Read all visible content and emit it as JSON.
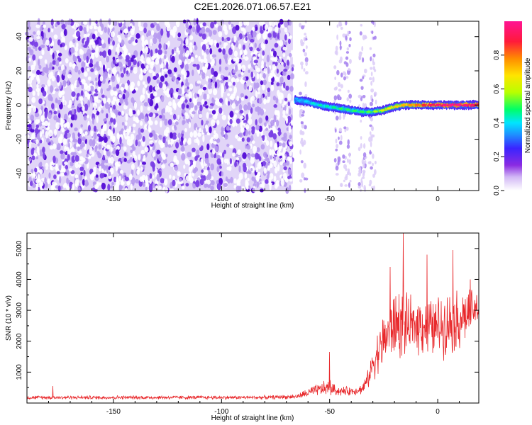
{
  "title": "C2E1.2026.071.06.57.E21",
  "colors": {
    "background": "#ffffff",
    "axis": "#000000",
    "snr_line": "#e8292c",
    "noise_purple": "#6a1ee0",
    "colormap": [
      "#ffffff",
      "#8a2be2",
      "#3a24ff",
      "#1e90ff",
      "#00e5ff",
      "#00ff66",
      "#b8ff00",
      "#ffe400",
      "#ff8c00",
      "#ff1a3a",
      "#ff1493"
    ]
  },
  "chart_data": [
    {
      "id": "spectrogram",
      "type": "heatmap",
      "title": "C2E1.2026.071.06.57.E21",
      "xlabel": "Height of straight line (km)",
      "ylabel": "Frequency (Hz)",
      "xlim": [
        -190,
        19
      ],
      "ylim": [
        -50,
        49
      ],
      "xticks": [
        -150,
        -100,
        -50,
        0
      ],
      "xtick_labels": [
        "-150",
        "-100",
        "-50",
        "0"
      ],
      "yticks": [
        -40,
        -20,
        0,
        20,
        40
      ],
      "ytick_labels": [
        "-40",
        "-20",
        "0",
        "20",
        "40"
      ],
      "colorbar": {
        "label": "Normalized spectral amplitude",
        "range": [
          0,
          1
        ],
        "ticks": [
          0.0,
          0.2,
          0.4,
          0.6,
          0.8
        ],
        "tick_labels": [
          "0.0",
          "0.2",
          "0.4",
          "0.6",
          "0.8"
        ]
      },
      "noise_region": {
        "x_range": [
          -190,
          -67
        ],
        "amplitude": 0.1
      },
      "sparse_noise_columns": [
        -62,
        -46,
        -42,
        -35,
        -30
      ],
      "signal_ridge": {
        "x": [
          -66,
          -60,
          -55,
          -50,
          -45,
          -40,
          -35,
          -30,
          -25,
          -20,
          -15,
          -10,
          -5,
          0,
          5,
          10,
          15,
          19
        ],
        "freq": [
          3,
          2,
          0,
          -1,
          -2,
          -3,
          -4,
          -4,
          -3,
          -1,
          0,
          0,
          0,
          0,
          0,
          0,
          0,
          0
        ],
        "amplitude": [
          0.3,
          0.35,
          0.4,
          0.4,
          0.45,
          0.45,
          0.45,
          0.5,
          0.6,
          0.65,
          0.7,
          0.75,
          0.85,
          0.9,
          0.95,
          0.95,
          0.9,
          0.9
        ]
      }
    },
    {
      "id": "snr",
      "type": "line",
      "xlabel": "Height of straight line (km)",
      "ylabel": "SNR (10 * v/v)",
      "xlim": [
        -190,
        19
      ],
      "ylim": [
        0,
        5500
      ],
      "xticks": [
        -150,
        -100,
        -50,
        0
      ],
      "xtick_labels": [
        "-150",
        "-100",
        "-50",
        "0"
      ],
      "yticks": [
        1000,
        2000,
        3000,
        4000,
        5000
      ],
      "ytick_labels": [
        "1000",
        "2000",
        "3000",
        "4000",
        "5000"
      ],
      "envelope": {
        "x": [
          -190,
          -170,
          -150,
          -120,
          -100,
          -80,
          -65,
          -60,
          -55,
          -50,
          -47,
          -45,
          -40,
          -35,
          -32,
          -30,
          -28,
          -25,
          -22,
          -20,
          -18,
          -15,
          -12,
          -10,
          -8,
          -5,
          -2,
          0,
          3,
          5,
          8,
          10,
          12,
          15,
          17,
          19
        ],
        "mean": [
          180,
          180,
          180,
          180,
          180,
          180,
          210,
          330,
          430,
          500,
          400,
          380,
          380,
          450,
          800,
          1300,
          1600,
          2000,
          2400,
          2500,
          2600,
          2500,
          2450,
          2550,
          2600,
          2500,
          2400,
          2500,
          2550,
          2600,
          2650,
          2700,
          2800,
          2900,
          3000,
          3050
        ],
        "spread": [
          60,
          60,
          60,
          60,
          60,
          60,
          70,
          160,
          200,
          280,
          150,
          150,
          140,
          160,
          300,
          500,
          700,
          900,
          1000,
          1100,
          1200,
          1000,
          900,
          900,
          1000,
          1000,
          900,
          1000,
          1000,
          1000,
          1000,
          1000,
          900,
          800,
          600,
          500
        ]
      },
      "peaks": [
        {
          "x": -178,
          "y": 550
        },
        {
          "x": -50,
          "y": 1650
        },
        {
          "x": -22,
          "y": 4400
        },
        {
          "x": -16,
          "y": 5600
        },
        {
          "x": -5,
          "y": 4800
        },
        {
          "x": 7,
          "y": 4950
        },
        {
          "x": 15,
          "y": 4000
        }
      ]
    }
  ]
}
